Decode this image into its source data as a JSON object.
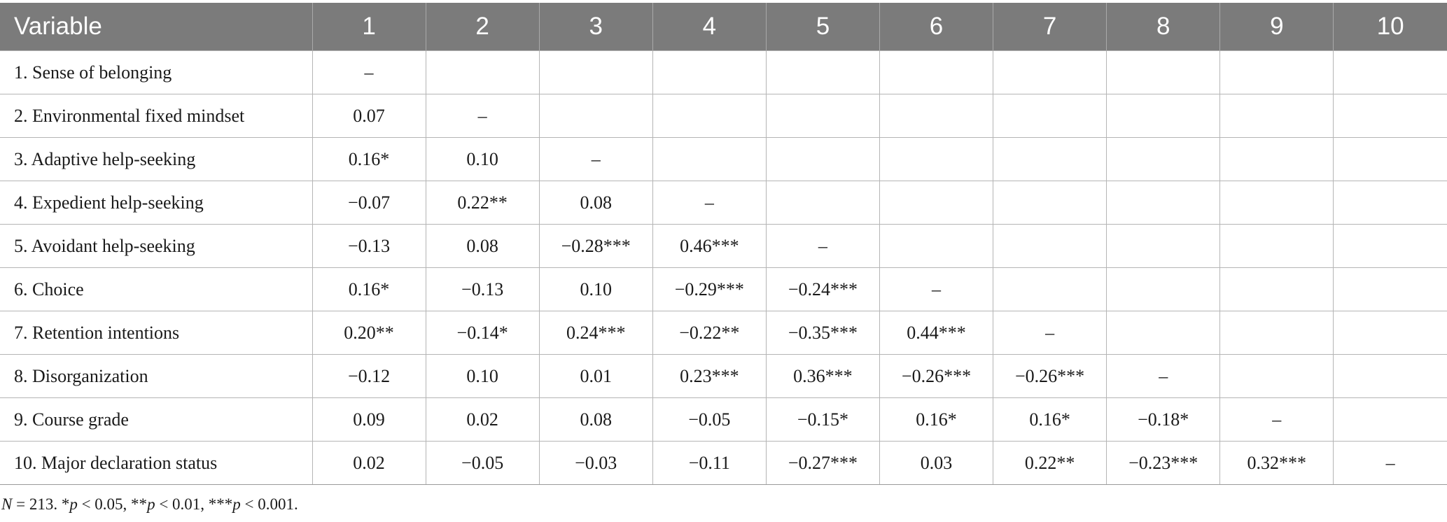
{
  "table": {
    "headers": [
      "Variable",
      "1",
      "2",
      "3",
      "4",
      "5",
      "6",
      "7",
      "8",
      "9",
      "10"
    ],
    "rows": [
      {
        "label": "1. Sense of belonging",
        "cells": [
          "–",
          "",
          "",
          "",
          "",
          "",
          "",
          "",
          "",
          ""
        ]
      },
      {
        "label": "2. Environmental fixed mindset",
        "cells": [
          "0.07",
          "–",
          "",
          "",
          "",
          "",
          "",
          "",
          "",
          ""
        ]
      },
      {
        "label": "3. Adaptive help-seeking",
        "cells": [
          "0.16*",
          "0.10",
          "–",
          "",
          "",
          "",
          "",
          "",
          "",
          ""
        ]
      },
      {
        "label": "4. Expedient help-seeking",
        "cells": [
          "−0.07",
          "0.22**",
          "0.08",
          "–",
          "",
          "",
          "",
          "",
          "",
          ""
        ]
      },
      {
        "label": "5. Avoidant help-seeking",
        "cells": [
          "−0.13",
          "0.08",
          "−0.28***",
          "0.46***",
          "–",
          "",
          "",
          "",
          "",
          ""
        ]
      },
      {
        "label": "6. Choice",
        "cells": [
          "0.16*",
          "−0.13",
          "0.10",
          "−0.29***",
          "−0.24***",
          "–",
          "",
          "",
          "",
          ""
        ]
      },
      {
        "label": "7. Retention intentions",
        "cells": [
          "0.20**",
          "−0.14*",
          "0.24***",
          "−0.22**",
          "−0.35***",
          "0.44***",
          "–",
          "",
          "",
          ""
        ]
      },
      {
        "label": "8. Disorganization",
        "cells": [
          "−0.12",
          "0.10",
          "0.01",
          "0.23***",
          "0.36***",
          "−0.26***",
          "−0.26***",
          "–",
          "",
          ""
        ]
      },
      {
        "label": "9. Course grade",
        "cells": [
          "0.09",
          "0.02",
          "0.08",
          "−0.05",
          "−0.15*",
          "0.16*",
          "0.16*",
          "−0.18*",
          "–",
          ""
        ]
      },
      {
        "label": "10. Major declaration status",
        "cells": [
          "0.02",
          "−0.05",
          "−0.03",
          "−0.11",
          "−0.27***",
          "0.03",
          "0.22**",
          "−0.23***",
          "0.32***",
          "–"
        ]
      }
    ]
  },
  "footnote": {
    "n_label": "N",
    "rest": " = 213. *",
    "p1": "p",
    "t1": " < 0.05, **",
    "p2": "p",
    "t2": " < 0.01, ***",
    "p3": "p",
    "t3": " < 0.001."
  }
}
